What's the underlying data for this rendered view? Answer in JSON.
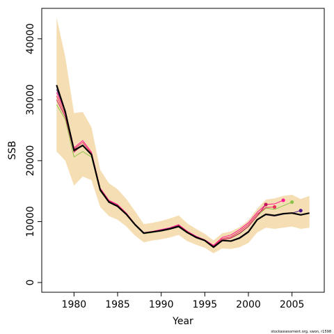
{
  "chart_data": {
    "type": "line",
    "title": "",
    "xlabel": "Year",
    "ylabel": "SSB",
    "xlim": [
      1976.3,
      2008.7
    ],
    "ylim": [
      -1600,
      45000
    ],
    "x_ticks": [
      1980,
      1985,
      1990,
      1995,
      2000,
      2005
    ],
    "y_ticks": [
      0,
      10000,
      20000,
      30000,
      40000
    ],
    "grid": false,
    "credit": "stockassessment.org, swon, r1598",
    "band": {
      "color": "#f5deb3",
      "x": [
        1978,
        1979,
        1980,
        1981,
        1982,
        1983,
        1984,
        1985,
        1986,
        1987,
        1988,
        1989,
        1990,
        1991,
        1992,
        1993,
        1994,
        1995,
        1996,
        1997,
        1998,
        1999,
        2000,
        2001,
        2002,
        2003,
        2004,
        2005,
        2006,
        2007
      ],
      "upper": [
        43500,
        37000,
        27800,
        28000,
        25500,
        18500,
        16300,
        15300,
        13700,
        11700,
        9600,
        9800,
        10100,
        10500,
        11000,
        9700,
        8800,
        8000,
        6900,
        8100,
        8400,
        9100,
        10200,
        12100,
        13600,
        13800,
        14200,
        14400,
        13700,
        14200
      ],
      "lower": [
        21500,
        20000,
        15900,
        17400,
        16800,
        12400,
        10900,
        10300,
        9200,
        7700,
        6600,
        6900,
        7100,
        7400,
        7800,
        6800,
        6200,
        5700,
        4800,
        5600,
        5500,
        5800,
        6500,
        8200,
        9000,
        8800,
        9000,
        9200,
        8800,
        9000
      ]
    },
    "series": [
      {
        "color": "#8bc34a",
        "x": [
          1978,
          1979,
          1980,
          1981,
          1982,
          1983,
          1984,
          1985,
          1986,
          1987,
          1988,
          1989,
          1990,
          1991,
          1992,
          1993,
          1994,
          1995,
          1996,
          1997,
          1998,
          1999,
          2000,
          2001,
          2002,
          2003,
          2004,
          2005
        ],
        "values": [
          29200,
          26800,
          20600,
          21500,
          20600,
          15000,
          13200,
          12500,
          11100,
          9400,
          8000,
          8200,
          8500,
          8800,
          9200,
          8200,
          7500,
          6900,
          6000,
          7000,
          7300,
          8000,
          9200,
          10900,
          12200,
          12000,
          12600,
          13200
        ],
        "end_dot": true
      },
      {
        "color": "#ff1493",
        "x": [
          1978,
          1979,
          1980,
          1981,
          1982,
          1983,
          1984,
          1985,
          1986,
          1987,
          1988,
          1989,
          1990,
          1991,
          1992,
          1993,
          1994,
          1995,
          1996,
          1997,
          1998,
          1999,
          2000,
          2001,
          2002,
          2003,
          2004
        ],
        "values": [
          31200,
          28000,
          22100,
          23300,
          21400,
          15500,
          13500,
          12800,
          11400,
          9600,
          8200,
          8400,
          8700,
          9000,
          9500,
          8400,
          7600,
          7000,
          6100,
          7400,
          7800,
          8700,
          9800,
          11500,
          12800,
          12900,
          13500
        ],
        "end_dot": true
      },
      {
        "color": "#e8305a",
        "x": [
          1978,
          1979,
          1980,
          1981,
          1982,
          1983,
          1984,
          1985,
          1986,
          1987,
          1988,
          1989,
          1990,
          1991,
          1992,
          1993,
          1994,
          1995,
          1996,
          1997,
          1998,
          1999,
          2000,
          2001,
          2002,
          2003
        ],
        "values": [
          30600,
          27600,
          21900,
          23000,
          21200,
          15400,
          13400,
          12700,
          11300,
          9500,
          8100,
          8300,
          8600,
          8900,
          9400,
          8300,
          7500,
          6900,
          6000,
          7200,
          7500,
          8400,
          9500,
          11200,
          12300,
          12400
        ],
        "end_dot": true
      },
      {
        "color": "#c2185b",
        "x": [
          1978,
          1979,
          1980,
          1981,
          1982,
          1983,
          1984,
          1985,
          1986,
          1987,
          1988,
          1989,
          1990,
          1991,
          1992,
          1993,
          1994,
          1995,
          1996,
          1997,
          1998,
          1999,
          2000,
          2001,
          2002
        ],
        "values": [
          30000,
          27200,
          21400,
          22600,
          20900,
          15300,
          13300,
          12600,
          11200,
          9500,
          8100,
          8300,
          8600,
          8900,
          9300,
          8200,
          7400,
          6900,
          5900,
          7000,
          7300,
          8100,
          9200,
          10900,
          12800
        ],
        "end_dot": true
      },
      {
        "color": "#4a148c",
        "x": [
          1978,
          1979,
          1980,
          1981,
          1982,
          1983,
          1984,
          1985,
          1986,
          1987,
          1988,
          1989,
          1990,
          1991,
          1992,
          1993,
          1994,
          1995,
          1996,
          1997,
          1998,
          1999,
          2000,
          2001,
          2002,
          2003,
          2004,
          2005,
          2006
        ],
        "values": [
          31700,
          28200,
          21600,
          22600,
          21000,
          15300,
          13300,
          12600,
          11200,
          9500,
          8100,
          8300,
          8600,
          8900,
          9300,
          8200,
          7500,
          6900,
          5900,
          6900,
          6800,
          7400,
          8400,
          10300,
          11100,
          10900,
          11200,
          11400,
          11800
        ],
        "end_dot": true
      },
      {
        "color": "#000000",
        "main": true,
        "x": [
          1978,
          1979,
          1980,
          1981,
          1982,
          1983,
          1984,
          1985,
          1986,
          1987,
          1988,
          1989,
          1990,
          1991,
          1992,
          1993,
          1994,
          1995,
          1996,
          1997,
          1998,
          1999,
          2000,
          2001,
          2002,
          2003,
          2004,
          2005,
          2006,
          2007
        ],
        "values": [
          32400,
          28000,
          21700,
          22500,
          21000,
          15200,
          13200,
          12500,
          11200,
          9500,
          8100,
          8300,
          8500,
          8800,
          9200,
          8200,
          7400,
          6900,
          5800,
          6900,
          6800,
          7300,
          8300,
          10300,
          11200,
          11000,
          11300,
          11400,
          11100,
          11400
        ],
        "end_dot": false
      }
    ]
  }
}
